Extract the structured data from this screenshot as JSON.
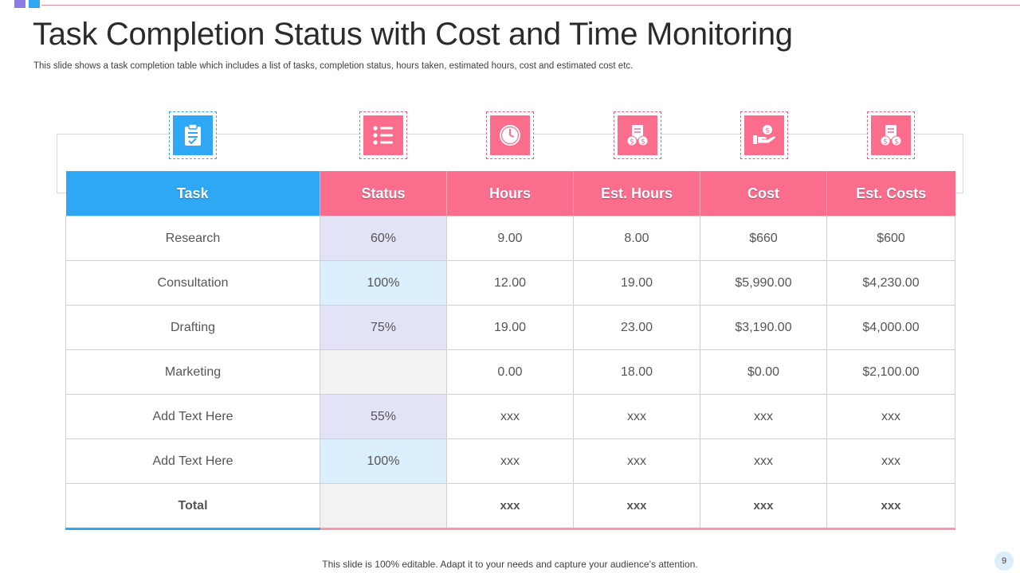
{
  "slide": {
    "title": "Task Completion Status with Cost and Time Monitoring",
    "subtitle": "This slide shows a task completion table which includes a list of tasks, completion status, hours taken, estimated hours, cost and estimated cost etc.",
    "footer": "This slide is 100% editable. Adapt it to your needs and capture your audience’s attention.",
    "page_number": "9"
  },
  "colors": {
    "accent_pink": "#fb6d8d",
    "accent_blue": "#2ea8f5",
    "status_lavender": "#e3e3f8",
    "status_sky": "#dbeffc",
    "status_gray": "#f2f2f2"
  },
  "icons": [
    "clipboard-icon",
    "checklist-icon",
    "clock-icon",
    "invoice-coins-icon",
    "hand-dollar-icon",
    "invoice-coins-icon"
  ],
  "table": {
    "headers": [
      "Task",
      "Status",
      "Hours",
      "Est. Hours",
      "Cost",
      "Est. Costs"
    ],
    "rows": [
      {
        "task": "Research",
        "status": "60%",
        "hours": "9.00",
        "est_hours": "8.00",
        "cost": "$660",
        "est_costs": "$600"
      },
      {
        "task": "Consultation",
        "status": "100%",
        "hours": "12.00",
        "est_hours": "19.00",
        "cost": "$5,990.00",
        "est_costs": "$4,230.00"
      },
      {
        "task": "Drafting",
        "status": "75%",
        "hours": "19.00",
        "est_hours": "23.00",
        "cost": "$3,190.00",
        "est_costs": "$4,000.00"
      },
      {
        "task": "Marketing",
        "status": "",
        "hours": "0.00",
        "est_hours": "18.00",
        "cost": "$0.00",
        "est_costs": "$2,100.00"
      },
      {
        "task": "Add Text Here",
        "status": "55%",
        "hours": "xxx",
        "est_hours": "xxx",
        "cost": "xxx",
        "est_costs": "xxx"
      },
      {
        "task": "Add Text Here",
        "status": "100%",
        "hours": "xxx",
        "est_hours": "xxx",
        "cost": "xxx",
        "est_costs": "xxx"
      }
    ],
    "total": {
      "task": "Total",
      "status": "",
      "hours": "xxx",
      "est_hours": "xxx",
      "cost": "xxx",
      "est_costs": "xxx"
    }
  }
}
